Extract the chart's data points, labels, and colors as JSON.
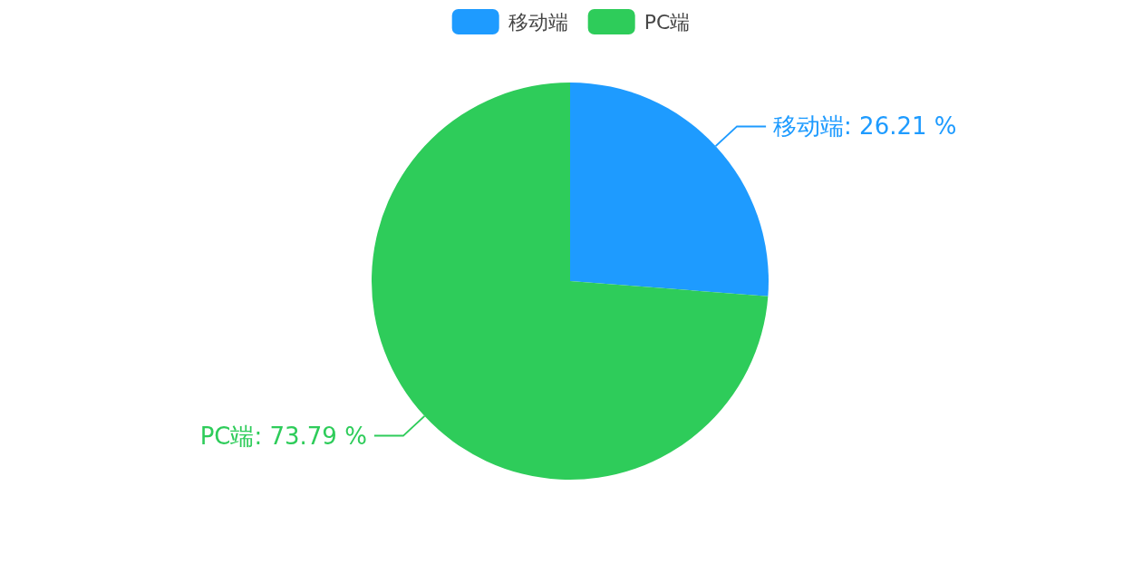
{
  "chart_data": {
    "type": "pie",
    "categories": [
      "移动端",
      "PC端"
    ],
    "values": [
      26.21,
      73.79
    ],
    "colors": [
      "#1e9bff",
      "#2ecc5a"
    ],
    "legend": "top",
    "value_labels": [
      "移动端: 26.21 %",
      "PC端: 73.79 %"
    ]
  }
}
